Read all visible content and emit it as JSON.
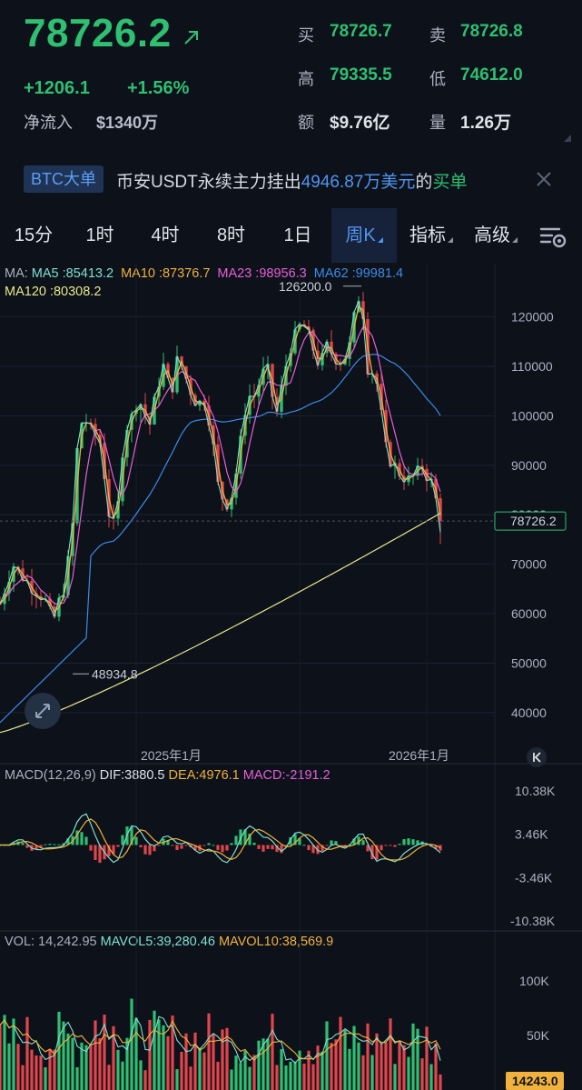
{
  "header": {
    "price": "78726.2",
    "change_abs": "+1206.1",
    "change_pct": "+1.56%",
    "netflow_label": "净流入",
    "netflow_value": "$1340万",
    "stats": [
      {
        "label": "买",
        "value": "78726.7",
        "tone": "green"
      },
      {
        "label": "卖",
        "value": "78726.8",
        "tone": "green"
      },
      {
        "label": "高",
        "value": "79335.5",
        "tone": "green"
      },
      {
        "label": "低",
        "value": "74612.0",
        "tone": "green"
      },
      {
        "label": "额",
        "value": "$9.76亿",
        "tone": "white"
      },
      {
        "label": "量",
        "value": "1.26万",
        "tone": "white"
      }
    ]
  },
  "banner": {
    "tag": "BTC大单",
    "text_pre": "币安USDT永续主力挂出",
    "amount": "4946.87万美元",
    "text_mid": "的",
    "side": "买单"
  },
  "tabs": [
    {
      "label": "15分",
      "active": false,
      "dropdown": false
    },
    {
      "label": "1时",
      "active": false,
      "dropdown": false
    },
    {
      "label": "4时",
      "active": false,
      "dropdown": false
    },
    {
      "label": "8时",
      "active": false,
      "dropdown": false
    },
    {
      "label": "1日",
      "active": false,
      "dropdown": false
    },
    {
      "label": "周K",
      "active": true,
      "dropdown": true
    },
    {
      "label": "指标",
      "active": false,
      "dropdown": true
    },
    {
      "label": "高级",
      "active": false,
      "dropdown": true
    }
  ],
  "icons": {
    "toolbar_settings": "chart-settings-icon",
    "close": "close-icon",
    "expand": "expand-arrows-icon",
    "scroll_end": "jump-to-latest-icon",
    "trend": "up-right-arrow-icon",
    "gear": "gear-icon"
  },
  "colors": {
    "up": "#2fbf71",
    "down": "#e2454b",
    "ma5": "#7fe0d0",
    "ma10": "#f0b23c",
    "ma23": "#e85fd7",
    "ma62": "#3c8ce6",
    "ma120": "#e8e88a",
    "blue": "#4f95f0"
  },
  "chart_data": [
    {
      "type": "candlestick",
      "title": "周K",
      "legend": {
        "prefix": "MA:",
        "items": [
          {
            "name": "MA5",
            "value": "85413.2"
          },
          {
            "name": "MA10",
            "value": "87376.7"
          },
          {
            "name": "MA23",
            "value": "98956.3"
          },
          {
            "name": "MA62",
            "value": "99981.4"
          },
          {
            "name": "MA120",
            "value": "80308.2"
          }
        ]
      },
      "y_ticks": [
        120000,
        110000,
        100000,
        90000,
        80000,
        70000,
        60000,
        50000,
        40000
      ],
      "x_ticks": [
        "2025年1月",
        "2026年1月"
      ],
      "annotations": {
        "high_label": "126200.0",
        "low_label": "48934.8",
        "last_price_label": "78726.2"
      },
      "last_price": 78726.2,
      "period_high": 126200.0,
      "period_low": 48934.8,
      "ylim": [
        33000,
        128000
      ],
      "grid": true,
      "ma_end": {
        "MA5": 85413.2,
        "MA10": 87376.7,
        "MA23": 98956.3,
        "MA62": 99981.4,
        "MA120": 80308.2
      }
    },
    {
      "type": "macd",
      "legend": {
        "prefix": "MACD(12,26,9)",
        "dif": "DIF:3880.5",
        "dea": "DEA:4976.1",
        "macd": "MACD:-2191.2"
      },
      "y_ticks": [
        "10.38K",
        "3.46K",
        "-3.46K",
        "-10.38K"
      ],
      "dif": 3880.5,
      "dea": 4976.1,
      "macd": -2191.2
    },
    {
      "type": "volume",
      "legend": {
        "vol": "VOL: 14,242.95",
        "mavol5": "MAVOL5:39,280.46",
        "mavol10": "MAVOL10:38,569.9"
      },
      "y_ticks": [
        "100K",
        "50K"
      ],
      "last_label": "14243.0",
      "last_volume": 14242.95
    }
  ]
}
